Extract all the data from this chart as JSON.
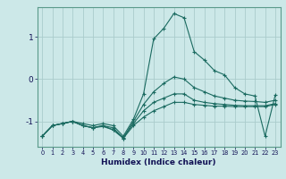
{
  "xlabel": "Humidex (Indice chaleur)",
  "ylabel": "",
  "xlim": [
    -0.5,
    23.5
  ],
  "ylim": [
    -1.6,
    1.7
  ],
  "yticks": [
    -1,
    0,
    1
  ],
  "xticks": [
    0,
    1,
    2,
    3,
    4,
    5,
    6,
    7,
    8,
    9,
    10,
    11,
    12,
    13,
    14,
    15,
    16,
    17,
    18,
    19,
    20,
    21,
    22,
    23
  ],
  "bg_color": "#cce8e8",
  "grid_color": "#aacccc",
  "line_color": "#1a6a60",
  "series": [
    {
      "x": [
        0,
        1,
        2,
        3,
        4,
        5,
        6,
        7,
        8,
        9,
        10,
        11,
        12,
        13,
        14,
        15,
        16,
        17,
        18,
        19,
        20,
        21,
        22,
        23
      ],
      "y": [
        -1.35,
        -1.1,
        -1.05,
        -1.0,
        -1.05,
        -1.1,
        -1.05,
        -1.1,
        -1.35,
        -0.95,
        -0.35,
        0.95,
        1.2,
        1.55,
        1.45,
        0.65,
        0.45,
        0.2,
        0.1,
        -0.2,
        -0.35,
        -0.4,
        -1.35,
        -0.38
      ]
    },
    {
      "x": [
        0,
        1,
        2,
        3,
        4,
        5,
        6,
        7,
        8,
        9,
        10,
        11,
        12,
        13,
        14,
        15,
        16,
        17,
        18,
        19,
        20,
        21,
        22,
        23
      ],
      "y": [
        -1.35,
        -1.1,
        -1.05,
        -1.0,
        -1.1,
        -1.15,
        -1.1,
        -1.15,
        -1.4,
        -1.0,
        -0.6,
        -0.3,
        -0.1,
        0.05,
        0.0,
        -0.2,
        -0.3,
        -0.4,
        -0.45,
        -0.5,
        -0.52,
        -0.53,
        -0.55,
        -0.5
      ]
    },
    {
      "x": [
        0,
        1,
        2,
        3,
        4,
        5,
        6,
        7,
        8,
        9,
        10,
        11,
        12,
        13,
        14,
        15,
        16,
        17,
        18,
        19,
        20,
        21,
        22,
        23
      ],
      "y": [
        -1.35,
        -1.1,
        -1.05,
        -1.0,
        -1.1,
        -1.15,
        -1.1,
        -1.2,
        -1.4,
        -1.1,
        -0.9,
        -0.75,
        -0.65,
        -0.55,
        -0.55,
        -0.6,
        -0.62,
        -0.64,
        -0.64,
        -0.65,
        -0.65,
        -0.65,
        -0.65,
        -0.6
      ]
    },
    {
      "x": [
        0,
        1,
        2,
        3,
        4,
        5,
        6,
        7,
        8,
        9,
        10,
        11,
        12,
        13,
        14,
        15,
        16,
        17,
        18,
        19,
        20,
        21,
        22,
        23
      ],
      "y": [
        -1.35,
        -1.1,
        -1.05,
        -1.0,
        -1.1,
        -1.15,
        -1.12,
        -1.2,
        -1.38,
        -1.05,
        -0.75,
        -0.55,
        -0.45,
        -0.35,
        -0.35,
        -0.5,
        -0.55,
        -0.58,
        -0.6,
        -0.62,
        -0.63,
        -0.63,
        -0.63,
        -0.58
      ]
    }
  ]
}
